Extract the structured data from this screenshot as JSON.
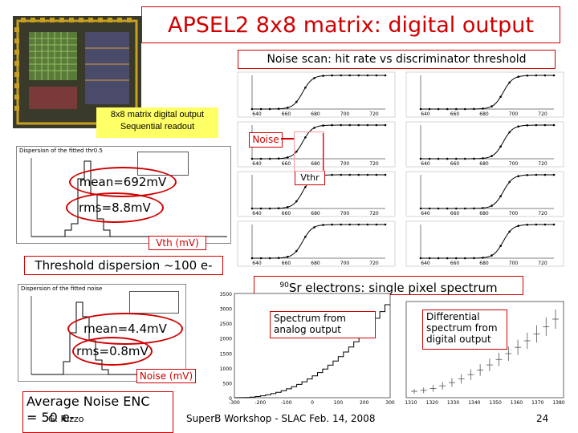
{
  "slide": {
    "title": "APSEL2 8x8 matrix: digital output",
    "subtitle": "Noise scan: hit rate vs discriminator threshold",
    "chip_label_line1": "8x8 matrix digital output",
    "chip_label_line2": "Sequential readout",
    "noise_label": "Noise",
    "vthr_label": "Vthr",
    "threshold_hist_title": "Dispersion of the fitted thr0.5",
    "noise_hist_title": "Dispersion of the fitted noise",
    "mean_threshold": "mean=692mV",
    "rms_threshold": "rms=8.8mV",
    "vth_axis": "Vth (mV)",
    "threshold_dispersion": "Threshold dispersion ~100 e-",
    "sr_super": "90",
    "sr_text": "Sr electrons: single pixel spectrum",
    "mean_noise": "mean=4.4mV",
    "rms_noise": "rms=0.8mV",
    "noise_axis": "Noise (mV)",
    "enc_line1": "Average Noise ENC",
    "enc_line2": "= 50 e-",
    "spectrum_analog_1": "Spectrum from",
    "spectrum_analog_2": "analog output",
    "spectrum_digital_1": "Differential",
    "spectrum_digital_2": "spectrum from",
    "spectrum_digital_3": "digital output",
    "author": "G. Rizzo",
    "workshop": "SuperB Workshop - SLAC Feb. 14, 2008",
    "page": "24"
  },
  "colors": {
    "accent": "#d00000",
    "chip_label_bg": "#ffff66"
  },
  "scurve_axis": {
    "ticks": [
      "640",
      "660",
      "680",
      "700",
      "720"
    ]
  },
  "spectrum_ticks": {
    "analog_y": [
      "3500",
      "3000",
      "2500",
      "2000",
      "1500",
      "1000",
      "500",
      "0"
    ],
    "analog_x": [
      "-300",
      "-200",
      "-100",
      "0",
      "100",
      "200",
      "300"
    ],
    "digital_x": [
      "1310",
      "1320",
      "1330",
      "1340",
      "1350",
      "1360",
      "1370",
      "1380"
    ]
  }
}
